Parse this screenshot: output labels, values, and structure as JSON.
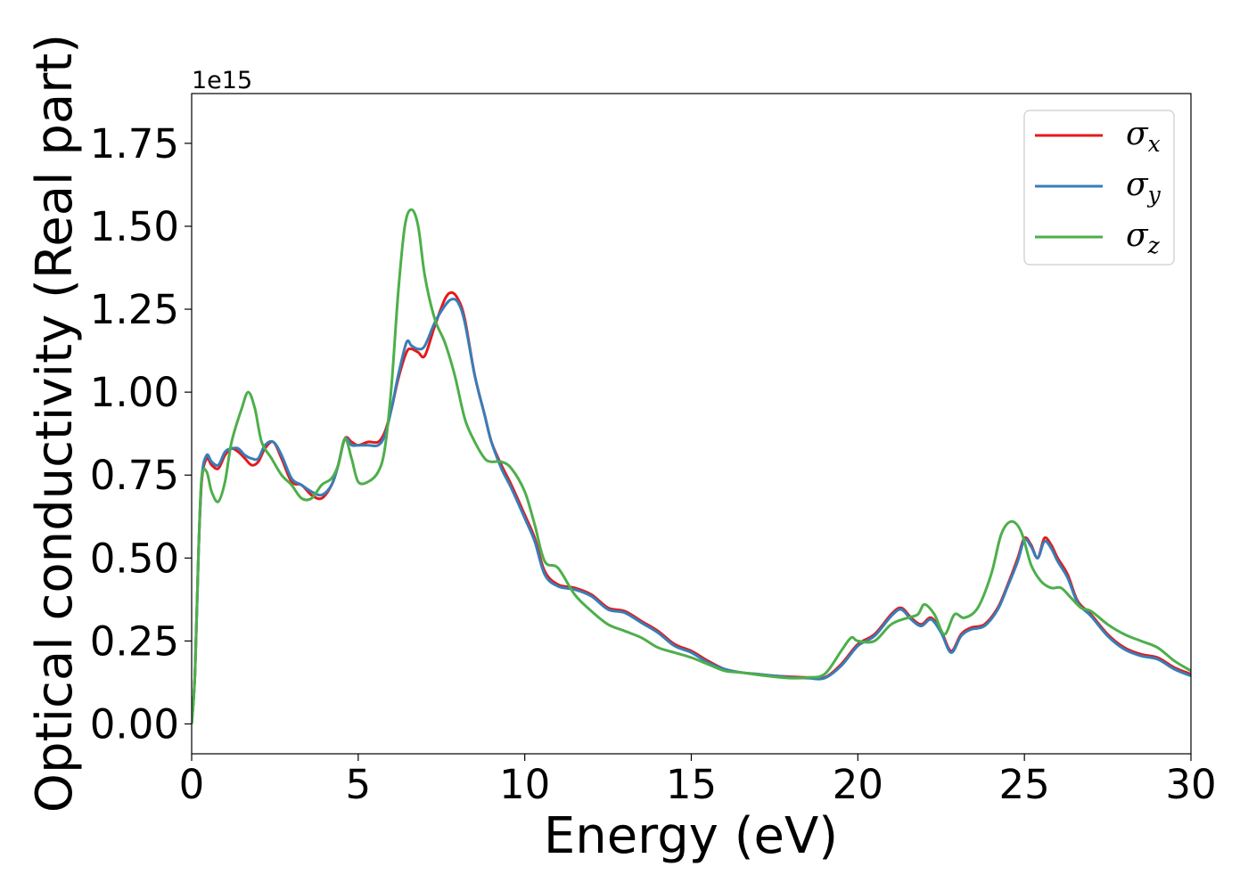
{
  "chart_data": {
    "type": "line",
    "xlabel": "Energy (eV)",
    "ylabel": "Optical conductivity (Real part)",
    "y_offset_label": "1e15",
    "y_scale": 1000000000000000.0,
    "xlim": [
      0,
      30
    ],
    "ylim": [
      -0.09,
      1.9
    ],
    "x_ticks": [
      0,
      5,
      10,
      15,
      20,
      25,
      30
    ],
    "x_tick_labels": [
      "0",
      "5",
      "10",
      "15",
      "20",
      "25",
      "30"
    ],
    "y_ticks": [
      0,
      0.25,
      0.5,
      0.75,
      1.0,
      1.25,
      1.5,
      1.75
    ],
    "y_tick_labels": [
      "0.00",
      "0.25",
      "0.50",
      "0.75",
      "1.00",
      "1.25",
      "1.50",
      "1.75"
    ],
    "grid": false,
    "legend_position": "top-right",
    "series": [
      {
        "name": "σx",
        "symbol": "σ",
        "sub": "x",
        "color": "#e41a1c",
        "x": [
          0,
          0.1,
          0.2,
          0.3,
          0.45,
          0.6,
          0.8,
          1.0,
          1.2,
          1.4,
          1.6,
          1.8,
          2.0,
          2.2,
          2.45,
          2.7,
          3.0,
          3.3,
          3.6,
          3.9,
          4.2,
          4.4,
          4.6,
          4.8,
          5.0,
          5.3,
          5.6,
          5.8,
          6.0,
          6.2,
          6.45,
          6.6,
          6.8,
          7.0,
          7.3,
          7.6,
          7.8,
          8.0,
          8.2,
          8.5,
          8.8,
          9.0,
          9.3,
          9.6,
          10.0,
          10.3,
          10.6,
          11.0,
          11.5,
          12.0,
          12.5,
          13.0,
          13.5,
          14.0,
          14.5,
          15.0,
          15.5,
          16.0,
          16.5,
          17.0,
          17.5,
          18.0,
          18.5,
          19.0,
          19.5,
          20.0,
          20.5,
          21.0,
          21.3,
          21.6,
          21.9,
          22.2,
          22.5,
          22.8,
          23.1,
          23.4,
          23.8,
          24.2,
          24.5,
          24.8,
          25.0,
          25.2,
          25.4,
          25.6,
          25.8,
          26.0,
          26.3,
          26.6,
          27.0,
          27.5,
          28.0,
          28.5,
          29.0,
          29.5,
          30.0
        ],
        "values": [
          0.0,
          0.15,
          0.5,
          0.73,
          0.8,
          0.78,
          0.77,
          0.81,
          0.83,
          0.82,
          0.8,
          0.78,
          0.79,
          0.83,
          0.85,
          0.8,
          0.73,
          0.72,
          0.69,
          0.68,
          0.72,
          0.78,
          0.86,
          0.85,
          0.84,
          0.85,
          0.85,
          0.88,
          0.95,
          1.04,
          1.12,
          1.13,
          1.12,
          1.11,
          1.2,
          1.28,
          1.3,
          1.28,
          1.22,
          1.05,
          0.93,
          0.85,
          0.78,
          0.72,
          0.63,
          0.56,
          0.46,
          0.42,
          0.41,
          0.39,
          0.35,
          0.34,
          0.31,
          0.28,
          0.24,
          0.22,
          0.19,
          0.165,
          0.155,
          0.15,
          0.145,
          0.142,
          0.14,
          0.14,
          0.18,
          0.24,
          0.27,
          0.33,
          0.35,
          0.32,
          0.3,
          0.32,
          0.28,
          0.22,
          0.27,
          0.29,
          0.3,
          0.35,
          0.42,
          0.5,
          0.56,
          0.54,
          0.5,
          0.56,
          0.54,
          0.5,
          0.45,
          0.37,
          0.33,
          0.27,
          0.23,
          0.21,
          0.2,
          0.17,
          0.15
        ]
      },
      {
        "name": "σy",
        "symbol": "σ",
        "sub": "y",
        "color": "#377eb8",
        "x": [
          0,
          0.1,
          0.2,
          0.3,
          0.45,
          0.6,
          0.8,
          1.0,
          1.2,
          1.4,
          1.6,
          1.8,
          2.0,
          2.2,
          2.45,
          2.7,
          3.0,
          3.3,
          3.6,
          3.9,
          4.2,
          4.4,
          4.6,
          4.8,
          5.0,
          5.3,
          5.6,
          5.8,
          6.0,
          6.2,
          6.45,
          6.6,
          6.8,
          7.0,
          7.3,
          7.6,
          7.8,
          8.0,
          8.2,
          8.5,
          8.8,
          9.0,
          9.3,
          9.6,
          10.0,
          10.3,
          10.6,
          11.0,
          11.5,
          12.0,
          12.5,
          13.0,
          13.5,
          14.0,
          14.5,
          15.0,
          15.5,
          16.0,
          16.5,
          17.0,
          17.5,
          18.0,
          18.5,
          19.0,
          19.5,
          20.0,
          20.5,
          21.0,
          21.3,
          21.6,
          21.9,
          22.2,
          22.5,
          22.8,
          23.1,
          23.4,
          23.8,
          24.2,
          24.5,
          24.8,
          25.0,
          25.2,
          25.4,
          25.6,
          25.8,
          26.0,
          26.3,
          26.6,
          27.0,
          27.5,
          28.0,
          28.5,
          29.0,
          29.5,
          30.0
        ],
        "values": [
          0.0,
          0.15,
          0.5,
          0.74,
          0.81,
          0.79,
          0.78,
          0.82,
          0.83,
          0.83,
          0.81,
          0.8,
          0.8,
          0.84,
          0.85,
          0.81,
          0.74,
          0.72,
          0.7,
          0.69,
          0.72,
          0.78,
          0.86,
          0.84,
          0.84,
          0.84,
          0.84,
          0.87,
          0.95,
          1.05,
          1.15,
          1.14,
          1.13,
          1.14,
          1.21,
          1.26,
          1.28,
          1.27,
          1.21,
          1.05,
          0.93,
          0.85,
          0.77,
          0.71,
          0.62,
          0.55,
          0.45,
          0.415,
          0.405,
          0.385,
          0.345,
          0.335,
          0.305,
          0.275,
          0.235,
          0.215,
          0.185,
          0.165,
          0.155,
          0.15,
          0.145,
          0.14,
          0.138,
          0.138,
          0.175,
          0.235,
          0.265,
          0.325,
          0.345,
          0.315,
          0.295,
          0.315,
          0.275,
          0.215,
          0.265,
          0.285,
          0.295,
          0.345,
          0.415,
          0.49,
          0.555,
          0.535,
          0.5,
          0.55,
          0.53,
          0.49,
          0.44,
          0.365,
          0.325,
          0.265,
          0.225,
          0.205,
          0.195,
          0.165,
          0.145
        ]
      },
      {
        "name": "σz",
        "symbol": "σ",
        "sub": "z",
        "color": "#4daf4a",
        "x": [
          0,
          0.1,
          0.2,
          0.3,
          0.45,
          0.6,
          0.8,
          1.0,
          1.2,
          1.5,
          1.7,
          1.9,
          2.1,
          2.4,
          2.7,
          3.0,
          3.3,
          3.6,
          3.9,
          4.2,
          4.4,
          4.6,
          4.8,
          5.0,
          5.3,
          5.6,
          5.8,
          6.0,
          6.2,
          6.4,
          6.6,
          6.8,
          7.0,
          7.3,
          7.6,
          7.9,
          8.2,
          8.5,
          8.8,
          9.0,
          9.3,
          9.6,
          10.0,
          10.3,
          10.6,
          11.0,
          11.5,
          12.0,
          12.5,
          13.0,
          13.5,
          14.0,
          14.5,
          15.0,
          15.5,
          16.0,
          16.5,
          17.0,
          17.5,
          18.0,
          18.5,
          19.0,
          19.5,
          19.8,
          20.0,
          20.5,
          21.0,
          21.5,
          21.8,
          22.0,
          22.3,
          22.6,
          22.9,
          23.2,
          23.6,
          24.0,
          24.3,
          24.6,
          24.9,
          25.2,
          25.5,
          25.8,
          26.1,
          26.4,
          26.7,
          27.0,
          27.5,
          28.0,
          28.5,
          29.0,
          29.5,
          30.0
        ],
        "values": [
          0.0,
          0.15,
          0.5,
          0.74,
          0.76,
          0.7,
          0.67,
          0.73,
          0.85,
          0.95,
          1.0,
          0.95,
          0.85,
          0.8,
          0.75,
          0.72,
          0.68,
          0.68,
          0.72,
          0.74,
          0.78,
          0.86,
          0.8,
          0.73,
          0.73,
          0.76,
          0.83,
          1.02,
          1.3,
          1.5,
          1.55,
          1.5,
          1.35,
          1.22,
          1.15,
          1.05,
          0.92,
          0.85,
          0.8,
          0.79,
          0.79,
          0.77,
          0.7,
          0.6,
          0.49,
          0.47,
          0.39,
          0.34,
          0.3,
          0.28,
          0.26,
          0.23,
          0.215,
          0.2,
          0.18,
          0.16,
          0.155,
          0.148,
          0.142,
          0.138,
          0.14,
          0.15,
          0.22,
          0.26,
          0.25,
          0.25,
          0.3,
          0.32,
          0.33,
          0.36,
          0.33,
          0.27,
          0.33,
          0.32,
          0.35,
          0.45,
          0.57,
          0.61,
          0.58,
          0.48,
          0.43,
          0.41,
          0.41,
          0.38,
          0.35,
          0.34,
          0.3,
          0.27,
          0.25,
          0.23,
          0.19,
          0.16
        ]
      }
    ]
  }
}
